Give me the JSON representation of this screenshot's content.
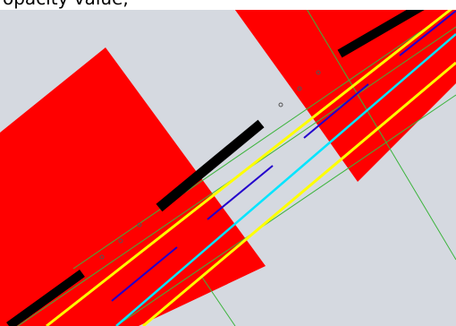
{
  "caption": {
    "text": "opacity value, "
  },
  "canvas": {
    "background_color": "#d5d9e0",
    "zones_color": "#ff0000",
    "road_edge_color": "#ffff00",
    "centerline_color": "#00e5ff",
    "lane_marking_color": "#2200cc",
    "barrier_color": "#000000",
    "guide_line_color": "#3cb43c",
    "marker_color": "#555555"
  }
}
